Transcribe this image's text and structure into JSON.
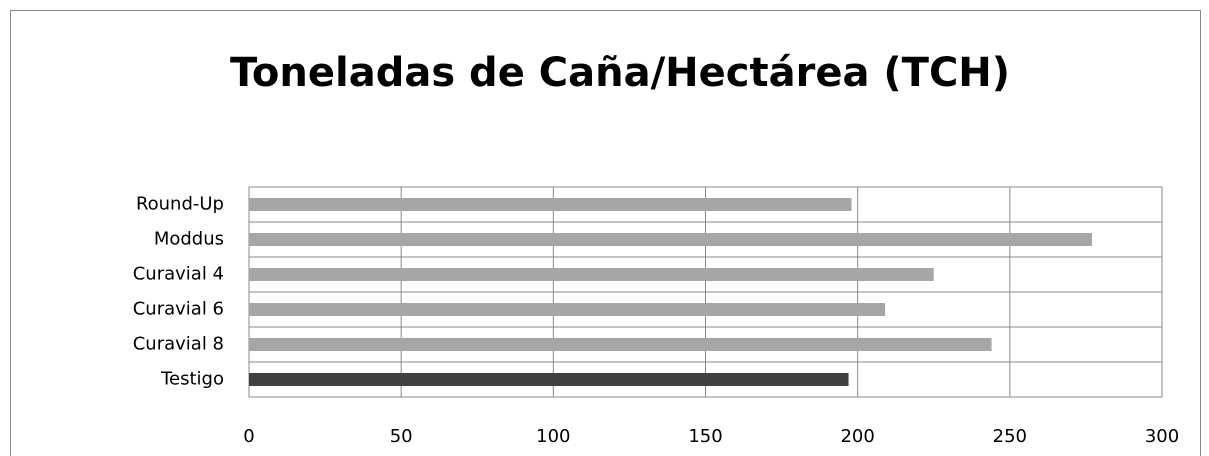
{
  "chart_data": {
    "type": "barh",
    "title": "Toneladas de Caña/Hectárea (TCH)",
    "categories": [
      "Testigo",
      "Curavial 8",
      "Curavial 6",
      "Curavial 4",
      "Moddus",
      "Round-Up"
    ],
    "values": [
      197,
      244,
      209,
      225,
      277,
      198
    ],
    "colors": [
      "#404040",
      "#a6a6a6",
      "#a6a6a6",
      "#a6a6a6",
      "#a6a6a6",
      "#a6a6a6"
    ],
    "xlim": [
      0,
      300
    ],
    "xticks": [
      0,
      50,
      100,
      150,
      200,
      250,
      300
    ],
    "grid": true
  }
}
